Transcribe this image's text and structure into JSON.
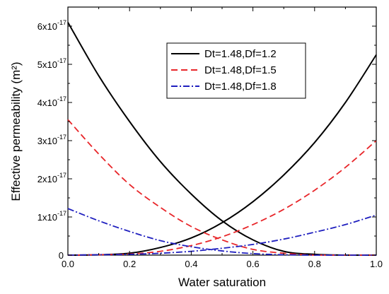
{
  "chart_data": {
    "type": "line",
    "title": "",
    "xlabel": "Water saturation",
    "ylabel": "Effective permeability (m²)",
    "xlim": [
      0.0,
      1.0
    ],
    "ylim": [
      0,
      6.5e-17
    ],
    "x_ticks": [
      0.0,
      0.2,
      0.4,
      0.6,
      0.8,
      1.0
    ],
    "x_tick_labels": [
      "0.0",
      "0.2",
      "0.4",
      "0.6",
      "0.8",
      "1.0"
    ],
    "y_ticks": [
      0,
      1e-17,
      2e-17,
      3e-17,
      4e-17,
      5e-17,
      6e-17
    ],
    "y_tick_labels": [
      {
        "base": "0",
        "exp": ""
      },
      {
        "base": "1x10",
        "exp": "-17"
      },
      {
        "base": "2x10",
        "exp": "-17"
      },
      {
        "base": "3x10",
        "exp": "-17"
      },
      {
        "base": "4x10",
        "exp": "-17"
      },
      {
        "base": "5x10",
        "exp": "-17"
      },
      {
        "base": "6x10",
        "exp": "-17"
      }
    ],
    "grid": false,
    "legend_position": "top-right",
    "x": [
      0.0,
      0.1,
      0.2,
      0.3,
      0.4,
      0.5,
      0.6,
      0.7,
      0.8,
      0.9,
      1.0
    ],
    "series": [
      {
        "name": "Dt=1.48,Df=1.2",
        "color": "#000000",
        "dash": "solid",
        "water_phase": [
          0,
          1e-19,
          5e-19,
          2e-18,
          4.5e-18,
          8.5e-18,
          1.4e-17,
          2.1e-17,
          2.95e-17,
          4e-17,
          5.25e-17
        ],
        "gas_phase": [
          6.1e-17,
          4.7e-17,
          3.5e-17,
          2.45e-17,
          1.6e-17,
          9e-18,
          4e-18,
          1e-18,
          2e-19,
          0,
          0
        ]
      },
      {
        "name": "Dt=1.48,Df=1.5",
        "color": "#e8262a",
        "dash": "dashed",
        "water_phase": [
          0,
          1e-19,
          3e-19,
          1e-18,
          2.5e-18,
          4.8e-18,
          8e-18,
          1.2e-17,
          1.7e-17,
          2.3e-17,
          3e-17
        ],
        "gas_phase": [
          3.55e-17,
          2.65e-17,
          1.85e-17,
          1.25e-17,
          7.5e-18,
          4e-18,
          1.5e-18,
          5e-19,
          0,
          0,
          0
        ]
      },
      {
        "name": "Dt=1.48,Df=1.8",
        "color": "#1f1fbf",
        "dash": "dashdot",
        "water_phase": [
          0,
          1e-19,
          2e-19,
          5e-19,
          1e-18,
          1.8e-18,
          2.8e-18,
          4.2e-18,
          6e-18,
          8e-18,
          1.05e-17
        ],
        "gas_phase": [
          1.22e-17,
          9e-18,
          6.2e-18,
          3.8e-18,
          2.2e-18,
          1.1e-18,
          4e-19,
          1e-19,
          0,
          0,
          0
        ]
      }
    ]
  }
}
